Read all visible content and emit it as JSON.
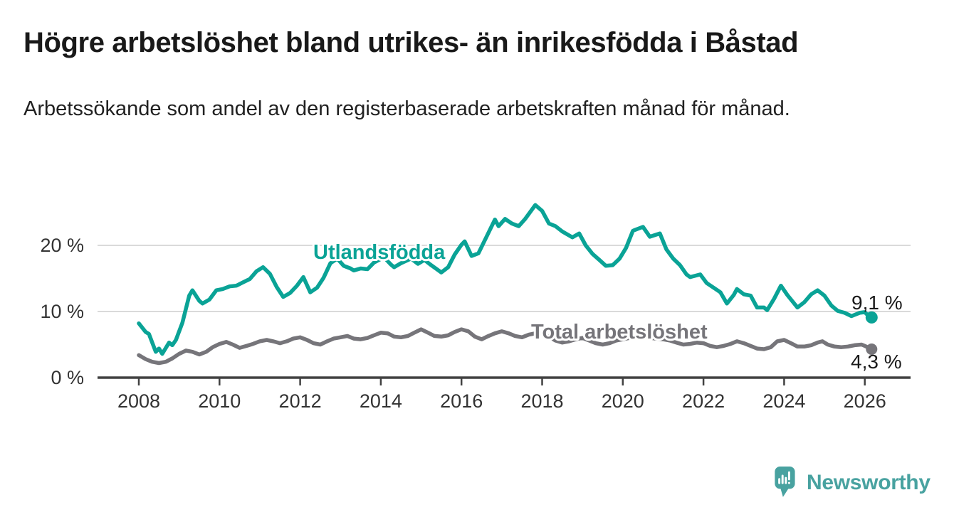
{
  "title": "Högre arbetslöshet bland utrikes- än inrikesfödda i Båstad",
  "subtitle": "Arbetssökande som andel av den registerbaserade arbetskraften månad för månad.",
  "branding": {
    "name": "Newsworthy",
    "icon": "speech-bubble-bar-chart-icon"
  },
  "colors": {
    "foreign_born_line": "#0aa396",
    "total_line": "#76757a",
    "axis_line": "#414141",
    "gridline": "#dadada",
    "axis_text": "#333333",
    "annotation_text": "#1a1a1a",
    "brand_teal": "#48a2a0",
    "background": "#ffffff"
  },
  "chart_data": {
    "type": "line",
    "title": "Högre arbetslöshet bland utrikes- än inrikesfödda i Båstad",
    "subtitle": "Arbetssökande som andel av den registerbaserade arbetskraften månad för månad.",
    "xlabel": "",
    "ylabel": "",
    "grid": "horizontal",
    "legend": "inline-labels",
    "x_axis": {
      "tick_labels": [
        "2008",
        "2010",
        "2012",
        "2014",
        "2016",
        "2018",
        "2020",
        "2022",
        "2024",
        "2026"
      ],
      "tick_values": [
        2008,
        2010,
        2012,
        2014,
        2016,
        2018,
        2020,
        2022,
        2024,
        2026
      ],
      "range_years": [
        2008,
        2026.17
      ]
    },
    "y_axis": {
      "unit": "%",
      "tick_labels": [
        "0 %",
        "10 %",
        "20 %"
      ],
      "tick_values": [
        0,
        10,
        20
      ],
      "gridline_values": [
        10,
        20
      ],
      "range": [
        0,
        27
      ]
    },
    "series": [
      {
        "name": "Utlandsfödda",
        "color": "#0aa396",
        "end_label": "9,1 %",
        "end_value": 9.1,
        "points": [
          [
            2008.0,
            8.2
          ],
          [
            2008.17,
            6.9
          ],
          [
            2008.25,
            6.6
          ],
          [
            2008.42,
            3.9
          ],
          [
            2008.5,
            4.4
          ],
          [
            2008.58,
            3.6
          ],
          [
            2008.75,
            5.3
          ],
          [
            2008.83,
            4.9
          ],
          [
            2008.92,
            5.7
          ],
          [
            2009.08,
            8.3
          ],
          [
            2009.25,
            12.4
          ],
          [
            2009.33,
            13.2
          ],
          [
            2009.5,
            11.6
          ],
          [
            2009.58,
            11.2
          ],
          [
            2009.75,
            11.8
          ],
          [
            2009.92,
            13.2
          ],
          [
            2010.08,
            13.4
          ],
          [
            2010.25,
            13.8
          ],
          [
            2010.42,
            13.9
          ],
          [
            2010.58,
            14.4
          ],
          [
            2010.75,
            14.9
          ],
          [
            2010.92,
            16.1
          ],
          [
            2011.08,
            16.7
          ],
          [
            2011.25,
            15.7
          ],
          [
            2011.42,
            13.7
          ],
          [
            2011.58,
            12.2
          ],
          [
            2011.75,
            12.8
          ],
          [
            2011.92,
            13.9
          ],
          [
            2012.08,
            15.2
          ],
          [
            2012.25,
            12.9
          ],
          [
            2012.42,
            13.6
          ],
          [
            2012.58,
            15.1
          ],
          [
            2012.75,
            17.3
          ],
          [
            2012.92,
            18.0
          ],
          [
            2013.08,
            16.9
          ],
          [
            2013.25,
            16.5
          ],
          [
            2013.33,
            16.2
          ],
          [
            2013.5,
            16.5
          ],
          [
            2013.67,
            16.4
          ],
          [
            2013.83,
            17.4
          ],
          [
            2014.08,
            18.2
          ],
          [
            2014.25,
            17.1
          ],
          [
            2014.33,
            16.7
          ],
          [
            2014.5,
            17.3
          ],
          [
            2014.75,
            18.0
          ],
          [
            2014.92,
            17.2
          ],
          [
            2015.08,
            17.8
          ],
          [
            2015.25,
            17.0
          ],
          [
            2015.5,
            15.9
          ],
          [
            2015.67,
            16.7
          ],
          [
            2015.83,
            18.6
          ],
          [
            2016.0,
            20.1
          ],
          [
            2016.08,
            20.6
          ],
          [
            2016.25,
            18.4
          ],
          [
            2016.42,
            18.8
          ],
          [
            2016.58,
            20.8
          ],
          [
            2016.83,
            23.9
          ],
          [
            2016.92,
            22.9
          ],
          [
            2017.08,
            24.0
          ],
          [
            2017.25,
            23.3
          ],
          [
            2017.42,
            22.9
          ],
          [
            2017.58,
            24.0
          ],
          [
            2017.83,
            26.1
          ],
          [
            2018.0,
            25.2
          ],
          [
            2018.17,
            23.3
          ],
          [
            2018.33,
            22.9
          ],
          [
            2018.5,
            22.1
          ],
          [
            2018.75,
            21.2
          ],
          [
            2018.92,
            21.8
          ],
          [
            2019.08,
            20.0
          ],
          [
            2019.25,
            18.7
          ],
          [
            2019.42,
            17.8
          ],
          [
            2019.58,
            16.9
          ],
          [
            2019.75,
            17.0
          ],
          [
            2019.92,
            18.0
          ],
          [
            2020.08,
            19.6
          ],
          [
            2020.25,
            22.2
          ],
          [
            2020.5,
            22.8
          ],
          [
            2020.67,
            21.3
          ],
          [
            2020.92,
            21.8
          ],
          [
            2021.08,
            19.4
          ],
          [
            2021.25,
            18.0
          ],
          [
            2021.42,
            17.0
          ],
          [
            2021.58,
            15.6
          ],
          [
            2021.67,
            15.2
          ],
          [
            2021.92,
            15.6
          ],
          [
            2022.08,
            14.3
          ],
          [
            2022.25,
            13.6
          ],
          [
            2022.42,
            12.9
          ],
          [
            2022.58,
            11.2
          ],
          [
            2022.75,
            12.5
          ],
          [
            2022.83,
            13.4
          ],
          [
            2023.0,
            12.6
          ],
          [
            2023.17,
            12.4
          ],
          [
            2023.33,
            10.6
          ],
          [
            2023.5,
            10.6
          ],
          [
            2023.58,
            10.2
          ],
          [
            2023.75,
            11.9
          ],
          [
            2023.92,
            13.9
          ],
          [
            2024.08,
            12.5
          ],
          [
            2024.33,
            10.6
          ],
          [
            2024.5,
            11.4
          ],
          [
            2024.67,
            12.6
          ],
          [
            2024.83,
            13.2
          ],
          [
            2025.0,
            12.4
          ],
          [
            2025.17,
            10.9
          ],
          [
            2025.33,
            10.1
          ],
          [
            2025.5,
            9.8
          ],
          [
            2025.67,
            9.3
          ],
          [
            2025.87,
            9.8
          ],
          [
            2026.0,
            9.9
          ],
          [
            2026.08,
            9.4
          ],
          [
            2026.17,
            9.1
          ]
        ]
      },
      {
        "name": "Total arbetslöshet",
        "color": "#76757a",
        "end_label": "4,3 %",
        "end_value": 4.3,
        "points": [
          [
            2008.0,
            3.4
          ],
          [
            2008.17,
            2.8
          ],
          [
            2008.33,
            2.4
          ],
          [
            2008.5,
            2.2
          ],
          [
            2008.67,
            2.4
          ],
          [
            2008.83,
            2.9
          ],
          [
            2009.0,
            3.6
          ],
          [
            2009.17,
            4.1
          ],
          [
            2009.33,
            3.9
          ],
          [
            2009.5,
            3.5
          ],
          [
            2009.67,
            3.9
          ],
          [
            2009.83,
            4.6
          ],
          [
            2010.0,
            5.1
          ],
          [
            2010.17,
            5.4
          ],
          [
            2010.33,
            5.0
          ],
          [
            2010.5,
            4.5
          ],
          [
            2010.67,
            4.8
          ],
          [
            2010.83,
            5.1
          ],
          [
            2011.0,
            5.5
          ],
          [
            2011.17,
            5.7
          ],
          [
            2011.33,
            5.5
          ],
          [
            2011.5,
            5.2
          ],
          [
            2011.67,
            5.5
          ],
          [
            2011.83,
            5.9
          ],
          [
            2012.0,
            6.1
          ],
          [
            2012.17,
            5.7
          ],
          [
            2012.33,
            5.2
          ],
          [
            2012.5,
            5.0
          ],
          [
            2012.67,
            5.5
          ],
          [
            2012.83,
            5.9
          ],
          [
            2013.0,
            6.1
          ],
          [
            2013.17,
            6.3
          ],
          [
            2013.33,
            5.9
          ],
          [
            2013.5,
            5.8
          ],
          [
            2013.67,
            6.0
          ],
          [
            2013.83,
            6.4
          ],
          [
            2014.0,
            6.8
          ],
          [
            2014.17,
            6.7
          ],
          [
            2014.33,
            6.2
          ],
          [
            2014.5,
            6.1
          ],
          [
            2014.67,
            6.3
          ],
          [
            2014.83,
            6.8
          ],
          [
            2015.0,
            7.3
          ],
          [
            2015.17,
            6.8
          ],
          [
            2015.33,
            6.3
          ],
          [
            2015.5,
            6.2
          ],
          [
            2015.67,
            6.4
          ],
          [
            2015.83,
            6.9
          ],
          [
            2016.0,
            7.3
          ],
          [
            2016.17,
            7.0
          ],
          [
            2016.33,
            6.2
          ],
          [
            2016.5,
            5.8
          ],
          [
            2016.67,
            6.3
          ],
          [
            2016.83,
            6.7
          ],
          [
            2017.0,
            7.0
          ],
          [
            2017.17,
            6.7
          ],
          [
            2017.33,
            6.3
          ],
          [
            2017.5,
            6.1
          ],
          [
            2017.67,
            6.5
          ],
          [
            2017.83,
            6.7
          ],
          [
            2018.0,
            6.7
          ],
          [
            2018.17,
            6.2
          ],
          [
            2018.33,
            5.6
          ],
          [
            2018.5,
            5.3
          ],
          [
            2018.67,
            5.5
          ],
          [
            2018.83,
            5.8
          ],
          [
            2019.0,
            6.0
          ],
          [
            2019.17,
            5.6
          ],
          [
            2019.33,
            5.2
          ],
          [
            2019.5,
            5.0
          ],
          [
            2019.67,
            5.2
          ],
          [
            2019.83,
            5.6
          ],
          [
            2020.0,
            5.8
          ],
          [
            2020.17,
            6.0
          ],
          [
            2020.33,
            6.3
          ],
          [
            2020.5,
            6.2
          ],
          [
            2020.67,
            6.0
          ],
          [
            2020.83,
            5.9
          ],
          [
            2021.0,
            5.8
          ],
          [
            2021.17,
            5.6
          ],
          [
            2021.33,
            5.3
          ],
          [
            2021.5,
            5.0
          ],
          [
            2021.67,
            5.1
          ],
          [
            2021.83,
            5.3
          ],
          [
            2022.0,
            5.2
          ],
          [
            2022.17,
            4.8
          ],
          [
            2022.33,
            4.6
          ],
          [
            2022.5,
            4.8
          ],
          [
            2022.67,
            5.1
          ],
          [
            2022.83,
            5.5
          ],
          [
            2023.0,
            5.2
          ],
          [
            2023.17,
            4.8
          ],
          [
            2023.33,
            4.4
          ],
          [
            2023.5,
            4.3
          ],
          [
            2023.67,
            4.6
          ],
          [
            2023.83,
            5.5
          ],
          [
            2024.0,
            5.7
          ],
          [
            2024.17,
            5.2
          ],
          [
            2024.33,
            4.7
          ],
          [
            2024.5,
            4.7
          ],
          [
            2024.67,
            4.9
          ],
          [
            2024.83,
            5.3
          ],
          [
            2024.95,
            5.5
          ],
          [
            2025.08,
            5.0
          ],
          [
            2025.25,
            4.7
          ],
          [
            2025.42,
            4.6
          ],
          [
            2025.58,
            4.7
          ],
          [
            2025.75,
            4.9
          ],
          [
            2025.92,
            5.0
          ],
          [
            2026.0,
            4.8
          ],
          [
            2026.17,
            4.3
          ]
        ]
      }
    ]
  }
}
